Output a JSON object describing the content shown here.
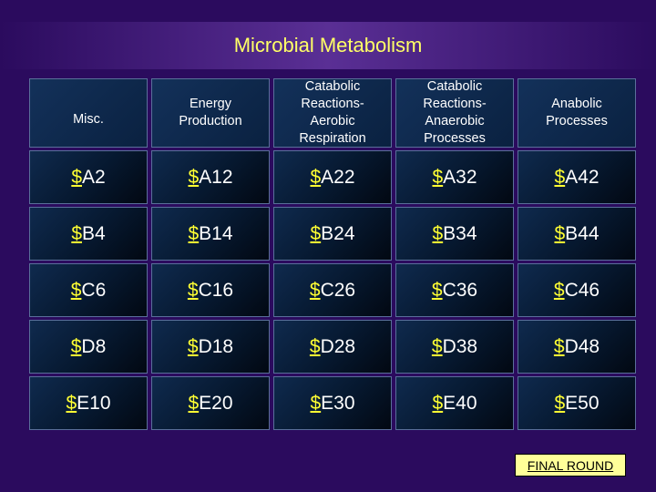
{
  "title": "Microbial Metabolism",
  "categories": [
    "Misc.",
    "Energy Production",
    "Catabolic Reactions-Aerobic Respiration",
    "Catabolic Reactions-Anaerobic Processes",
    "Anabolic Processes"
  ],
  "rows": [
    [
      "A2",
      "A12",
      "A22",
      "A32",
      "A42"
    ],
    [
      "B4",
      "B14",
      "B24",
      "B34",
      "B44"
    ],
    [
      "C6",
      "C16",
      "C26",
      "C36",
      "C46"
    ],
    [
      "D8",
      "D18",
      "D28",
      "D38",
      "D48"
    ],
    [
      "E10",
      "E20",
      "E30",
      "E40",
      "E50"
    ]
  ],
  "currency_symbol": "$",
  "final_round_label": "FINAL ROUND",
  "colors": {
    "background": "#2b0b5e",
    "title_text": "#ffff66",
    "dollar": "#ffff33",
    "final_button": "#ffff99"
  }
}
